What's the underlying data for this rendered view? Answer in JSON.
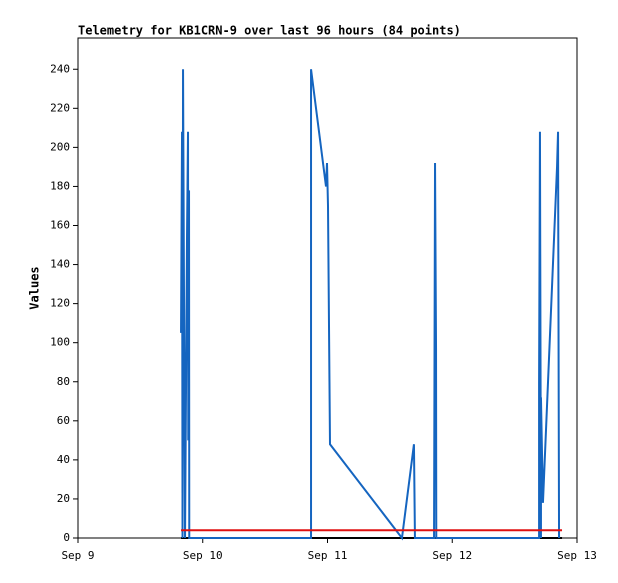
{
  "chart_data": {
    "type": "line",
    "title": "Telemetry for KB1CRN-9 over last 96 hours (84 points)",
    "y_label": "Values",
    "xlim": [
      9,
      13
    ],
    "xticks": [
      {
        "value": 9,
        "label": "Sep 9"
      },
      {
        "value": 10,
        "label": "Sep 10"
      },
      {
        "value": 11,
        "label": "Sep 11"
      },
      {
        "value": 12,
        "label": "Sep 12"
      },
      {
        "value": 13,
        "label": "Sep 13"
      }
    ],
    "ylim": [
      0,
      256
    ],
    "yticks": [
      0,
      20,
      40,
      60,
      80,
      100,
      120,
      140,
      160,
      180,
      200,
      220,
      240
    ],
    "series": [
      {
        "color": "#000000",
        "x": [
          9.826,
          12.88
        ],
        "values": [
          0,
          0
        ]
      },
      {
        "color": "#1565c0",
        "x": [
          9.826,
          9.834,
          9.838,
          9.842,
          9.85,
          9.858,
          9.874,
          9.882,
          9.884,
          9.89,
          9.892,
          10.868,
          10.868,
          10.988,
          10.996,
          11.004,
          11.02,
          11.573,
          11.597,
          11.693,
          11.701,
          11.854,
          11.862,
          11.87,
          11.872,
          12.696,
          12.696,
          12.703,
          12.711,
          12.711,
          12.727,
          12.84,
          12.848,
          12.856
        ],
        "values": [
          105,
          208,
          0,
          240,
          120,
          0,
          155,
          208,
          50,
          178,
          0,
          0,
          240,
          180,
          192,
          170,
          48,
          2,
          0,
          48,
          0,
          0,
          192,
          97,
          0,
          0,
          80,
          208,
          0,
          72,
          18,
          190,
          208,
          0
        ]
      },
      {
        "color": "#e01010",
        "x": [
          9.826,
          12.88
        ],
        "values": [
          4,
          4
        ]
      }
    ]
  }
}
